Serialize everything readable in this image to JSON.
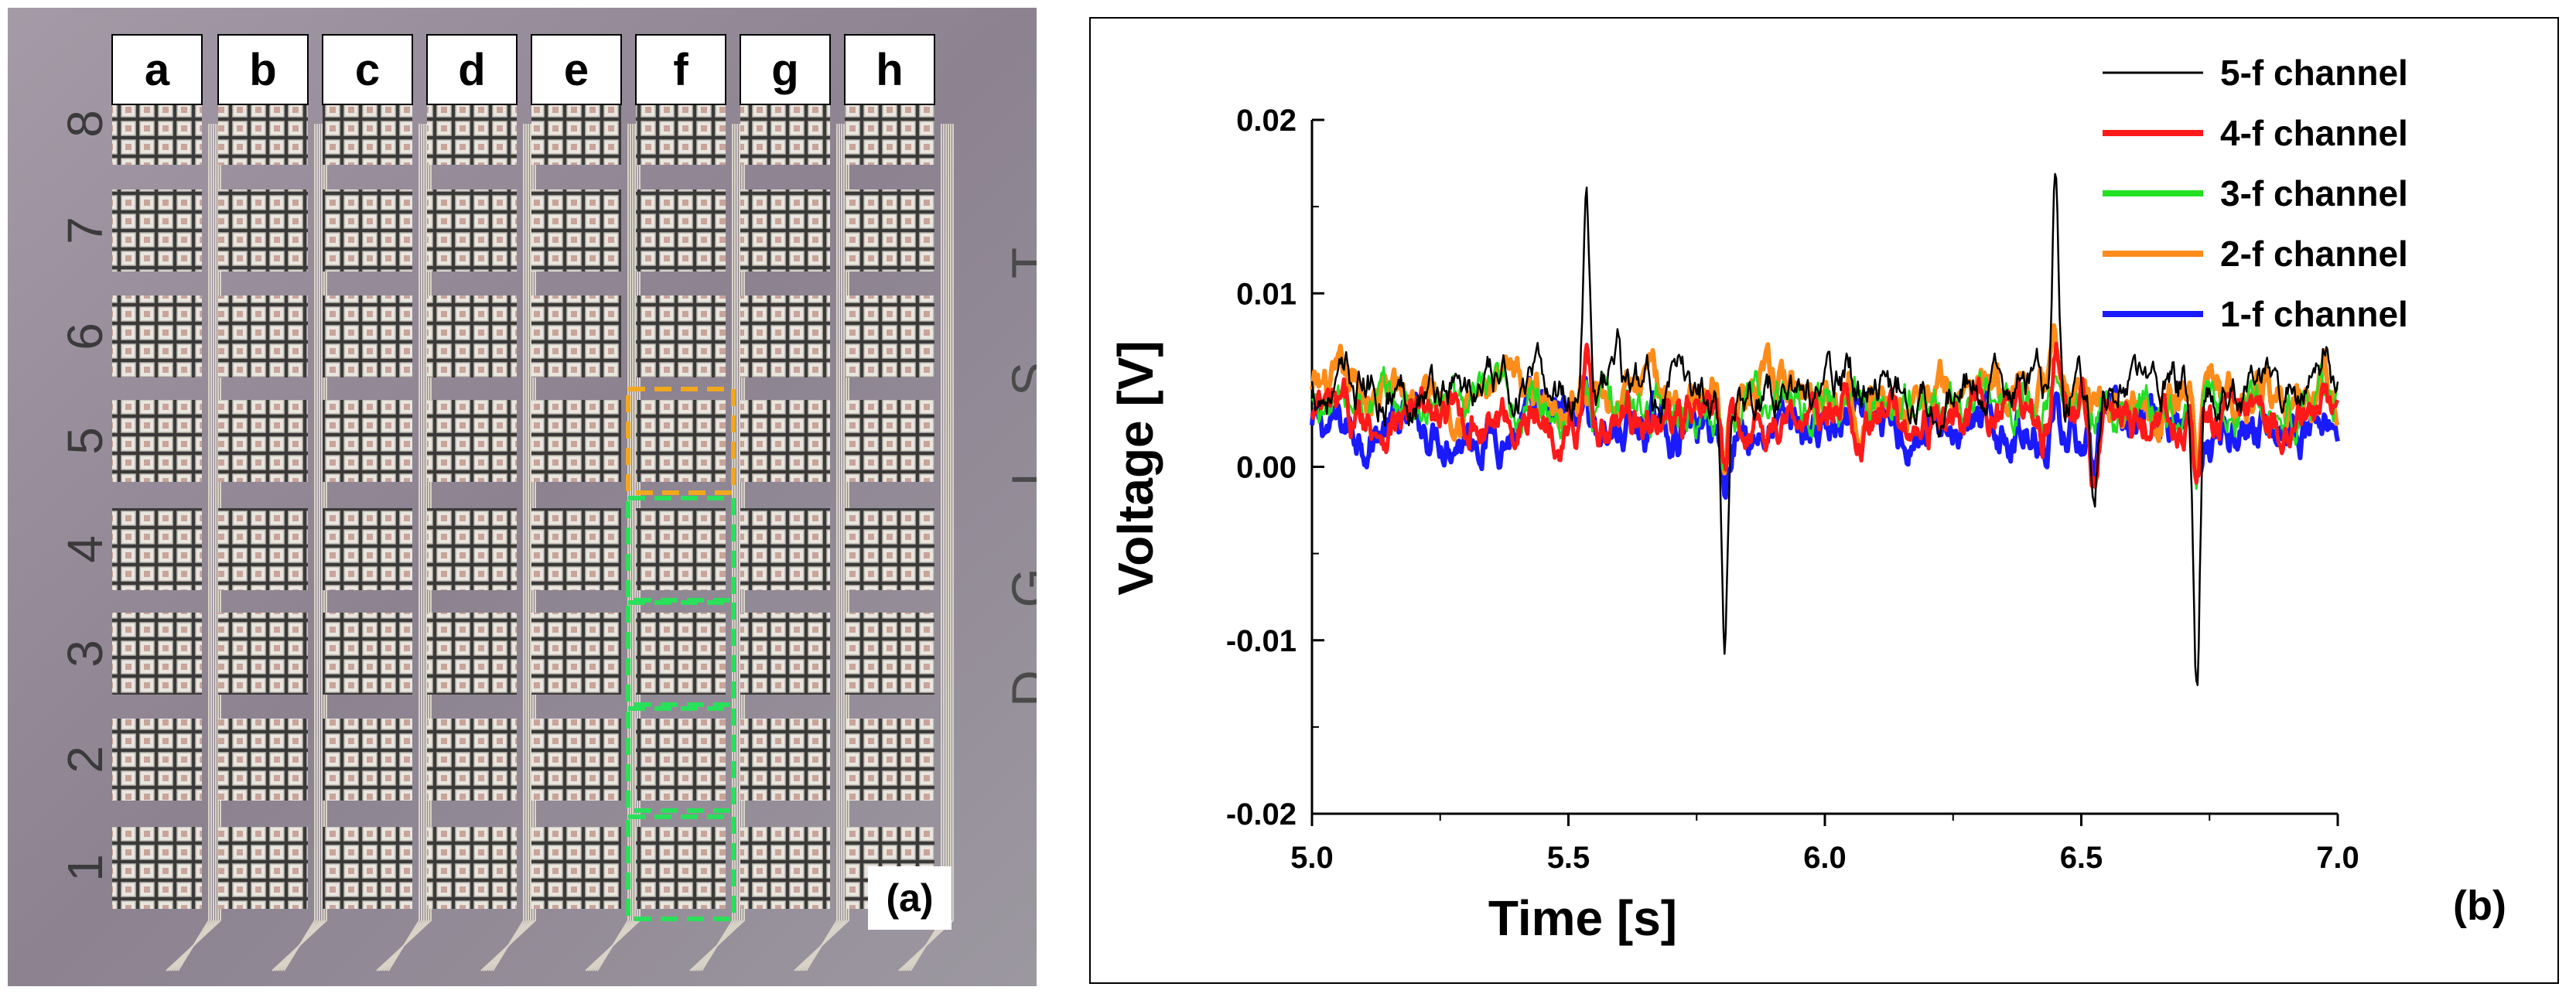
{
  "panel_a": {
    "label": "(a)",
    "columns": [
      "a",
      "b",
      "c",
      "d",
      "e",
      "f",
      "g",
      "h"
    ],
    "rows": [
      "1",
      "2",
      "3",
      "4",
      "5",
      "6",
      "7",
      "8"
    ],
    "chip_text": [
      "D",
      "G",
      "I",
      "S",
      "T"
    ],
    "highlight_column": "f",
    "orange_row": "5",
    "green_rows": [
      "1",
      "2",
      "3",
      "4"
    ],
    "colors": {
      "orange": "#f2a81d",
      "green": "#29e05a",
      "background": "#8f8592"
    }
  },
  "chart_data": {
    "type": "line",
    "panel_label": "(b)",
    "title": "",
    "xlabel": "Time [s]",
    "ylabel": "Voltage [V]",
    "xlim": [
      5.0,
      7.0
    ],
    "ylim": [
      -0.02,
      0.02
    ],
    "x_ticks": [
      "5.0",
      "5.5",
      "6.0",
      "6.5",
      "7.0"
    ],
    "y_ticks": [
      "-0.02",
      "-0.01",
      "0.00",
      "0.01",
      "0.02"
    ],
    "grid": false,
    "legend_position": "top-right",
    "series": [
      {
        "name": "5-f channel",
        "color": "#000000",
        "baseline": 0.0045,
        "events": [
          [
            5.535,
            0.0165
          ],
          [
            5.595,
            0.0072
          ],
          [
            5.805,
            -0.0095
          ],
          [
            6.045,
            0.0066
          ],
          [
            6.45,
            0.0175
          ],
          [
            6.525,
            -0.0005
          ],
          [
            6.725,
            -0.0127
          ],
          [
            6.975,
            0.0068
          ]
        ]
      },
      {
        "name": "4-f channel",
        "color": "#ff1a1a",
        "baseline": 0.0027,
        "events": [
          [
            5.535,
            0.0065
          ],
          [
            5.805,
            -0.0015
          ],
          [
            6.045,
            0.0045
          ],
          [
            6.45,
            0.0072
          ],
          [
            6.525,
            -0.0005
          ],
          [
            6.725,
            -0.0018
          ],
          [
            6.975,
            0.0045
          ]
        ]
      },
      {
        "name": "3-f channel",
        "color": "#22e022",
        "baseline": 0.0035,
        "events": [
          [
            5.535,
            0.005
          ],
          [
            5.805,
            0.0002
          ],
          [
            6.45,
            0.0055
          ],
          [
            6.725,
            -0.0008
          ],
          [
            6.975,
            0.0045
          ]
        ]
      },
      {
        "name": "2-f channel",
        "color": "#ff8c1a",
        "baseline": 0.0042,
        "events": [
          [
            5.535,
            0.0055
          ],
          [
            5.805,
            0.0003
          ],
          [
            6.045,
            0.0055
          ],
          [
            6.45,
            0.0062
          ],
          [
            6.725,
            -0.0005
          ],
          [
            6.975,
            0.0052
          ]
        ]
      },
      {
        "name": "1-f channel",
        "color": "#1a1aff",
        "baseline": 0.0022,
        "events": [
          [
            5.535,
            0.0045
          ],
          [
            5.805,
            -0.001
          ],
          [
            6.45,
            0.0045
          ],
          [
            6.525,
            -0.0007
          ],
          [
            6.725,
            -0.0012
          ],
          [
            6.975,
            0.003
          ]
        ]
      }
    ]
  }
}
